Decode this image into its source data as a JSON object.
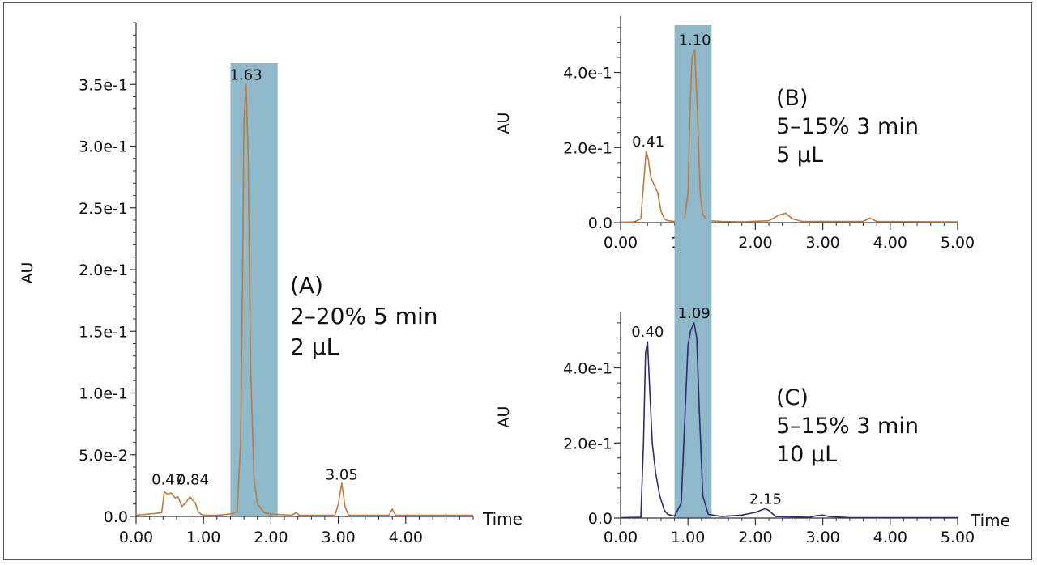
{
  "chart_data": [
    {
      "id": "A",
      "type": "line",
      "ylabel": "AU",
      "xlabel": "Time",
      "xlim": [
        0,
        5
      ],
      "ylim": [
        0,
        0.4
      ],
      "xticks": [
        "0.00",
        "1.00",
        "2.00",
        "3.00",
        "4.00"
      ],
      "xtick_values": [
        0,
        1,
        2,
        3,
        4
      ],
      "yticks": [
        "0.0",
        "5.0e-2",
        "1.0e-1",
        "1.5e-1",
        "2.0e-1",
        "2.5e-1",
        "3.0e-1",
        "3.5e-1"
      ],
      "ytick_values": [
        0,
        0.05,
        0.1,
        0.15,
        0.2,
        0.25,
        0.3,
        0.35
      ],
      "highlight": {
        "x0": 1.4,
        "x1": 2.1,
        "color": "#8fb8ca"
      },
      "line_color": "#c0793e",
      "annotation": [
        "(A)",
        "2–20% 5 min",
        "2 µL"
      ],
      "peak_labels": [
        {
          "text": "1.63",
          "x": 1.63,
          "y": 0.35
        },
        {
          "text": "0.47",
          "x": 0.47,
          "y": 0.022
        },
        {
          "text": "0.84",
          "x": 0.84,
          "y": 0.022
        },
        {
          "text": "3.05",
          "x": 3.05,
          "y": 0.026
        }
      ],
      "series": [
        {
          "x": [
            0,
            0.2,
            0.38,
            0.42,
            0.47,
            0.52,
            0.58,
            0.62,
            0.68,
            0.75,
            0.8,
            0.84,
            0.88,
            0.92,
            0.96,
            1.0,
            1.2,
            1.4,
            1.5,
            1.55,
            1.58,
            1.6,
            1.63,
            1.66,
            1.7,
            1.75,
            1.8,
            1.9,
            2.0,
            2.3,
            2.38,
            2.42,
            2.6,
            2.95,
            3.0,
            3.05,
            3.1,
            3.15,
            3.5,
            3.75,
            3.8,
            3.85,
            4.0,
            5.0
          ],
          "y": [
            0.001,
            0.002,
            0.003,
            0.02,
            0.018,
            0.019,
            0.015,
            0.016,
            0.008,
            0.012,
            0.016,
            0.013,
            0.011,
            0.004,
            0.002,
            0.001,
            0.001,
            0.002,
            0.004,
            0.06,
            0.2,
            0.32,
            0.35,
            0.3,
            0.12,
            0.03,
            0.01,
            0.003,
            0.002,
            0.001,
            0.003,
            0.001,
            0.001,
            0.001,
            0.01,
            0.027,
            0.008,
            0.001,
            0.001,
            0.001,
            0.006,
            0.001,
            0.001,
            0.001
          ]
        }
      ]
    },
    {
      "id": "B",
      "type": "line",
      "ylabel": "AU",
      "xlabel": "",
      "xlim": [
        0,
        5
      ],
      "ylim": [
        0,
        0.55
      ],
      "xticks": [
        "0.00",
        "1.00",
        "2.00",
        "3.00",
        "4.00",
        "5.00"
      ],
      "xtick_values": [
        0,
        1,
        2,
        3,
        4,
        5
      ],
      "yticks": [
        "0.0",
        "2.0e-1",
        "4.0e-1"
      ],
      "ytick_values": [
        0,
        0.2,
        0.4
      ],
      "highlight": {
        "x0": 0.8,
        "x1": 1.35,
        "color": "#8fb8ca"
      },
      "line_color": "#c0793e",
      "annotation": [
        "(B)",
        "5–15% 3 min",
        "5 µL"
      ],
      "peak_labels": [
        {
          "text": "1.10",
          "x": 1.1,
          "y": 0.46
        },
        {
          "text": "0.41",
          "x": 0.41,
          "y": 0.19
        }
      ],
      "series": [
        {
          "x": [
            0,
            0.2,
            0.3,
            0.34,
            0.38,
            0.41,
            0.45,
            0.5,
            0.55,
            0.6,
            0.65,
            0.7,
            0.8,
            0.95,
            1.0,
            1.03,
            1.06,
            1.1,
            1.14,
            1.18,
            1.22,
            1.3,
            1.5,
            1.8,
            2.2,
            2.35,
            2.45,
            2.55,
            2.7,
            3.6,
            3.7,
            3.8,
            5.0
          ],
          "y": [
            0.001,
            0.002,
            0.01,
            0.1,
            0.19,
            0.17,
            0.12,
            0.1,
            0.08,
            0.03,
            0.01,
            0.005,
            0.003,
            0.01,
            0.08,
            0.3,
            0.44,
            0.46,
            0.3,
            0.08,
            0.02,
            0.005,
            0.003,
            0.002,
            0.005,
            0.02,
            0.025,
            0.01,
            0.003,
            0.003,
            0.012,
            0.003,
            0.002
          ]
        }
      ]
    },
    {
      "id": "C",
      "type": "line",
      "ylabel": "AU",
      "xlabel": "Time",
      "xlim": [
        0,
        5
      ],
      "ylim": [
        0,
        0.55
      ],
      "xticks": [
        "0.00",
        "1.00",
        "2.00",
        "3.00",
        "4.00",
        "5.00"
      ],
      "xtick_values": [
        0,
        1,
        2,
        3,
        4,
        5
      ],
      "yticks": [
        "0.0",
        "2.0e-1",
        "4.0e-1"
      ],
      "ytick_values": [
        0,
        0.2,
        0.4
      ],
      "highlight": {
        "x0": 0.8,
        "x1": 1.35,
        "color": "#8fb8ca"
      },
      "line_color": "#2e2c6e",
      "annotation": [
        "(C)",
        "5–15% 3 min",
        "10 µL"
      ],
      "peak_labels": [
        {
          "text": "1.09",
          "x": 1.09,
          "y": 0.52
        },
        {
          "text": "0.40",
          "x": 0.4,
          "y": 0.47
        },
        {
          "text": "2.15",
          "x": 2.15,
          "y": 0.025
        }
      ],
      "series": [
        {
          "x": [
            0,
            0.3,
            0.34,
            0.37,
            0.4,
            0.43,
            0.47,
            0.52,
            0.58,
            0.65,
            0.7,
            0.8,
            0.9,
            0.95,
            1.0,
            1.04,
            1.09,
            1.13,
            1.17,
            1.22,
            1.3,
            1.5,
            1.8,
            2.0,
            2.1,
            2.15,
            2.2,
            2.3,
            2.8,
            2.9,
            3.0,
            3.1,
            3.4,
            5.0
          ],
          "y": [
            0.001,
            0.002,
            0.2,
            0.44,
            0.47,
            0.35,
            0.2,
            0.12,
            0.06,
            0.02,
            0.01,
            0.005,
            0.04,
            0.25,
            0.46,
            0.5,
            0.52,
            0.48,
            0.28,
            0.06,
            0.01,
            0.004,
            0.008,
            0.015,
            0.022,
            0.025,
            0.02,
            0.004,
            0.002,
            0.006,
            0.008,
            0.004,
            0.001,
            0.001
          ]
        }
      ]
    }
  ]
}
